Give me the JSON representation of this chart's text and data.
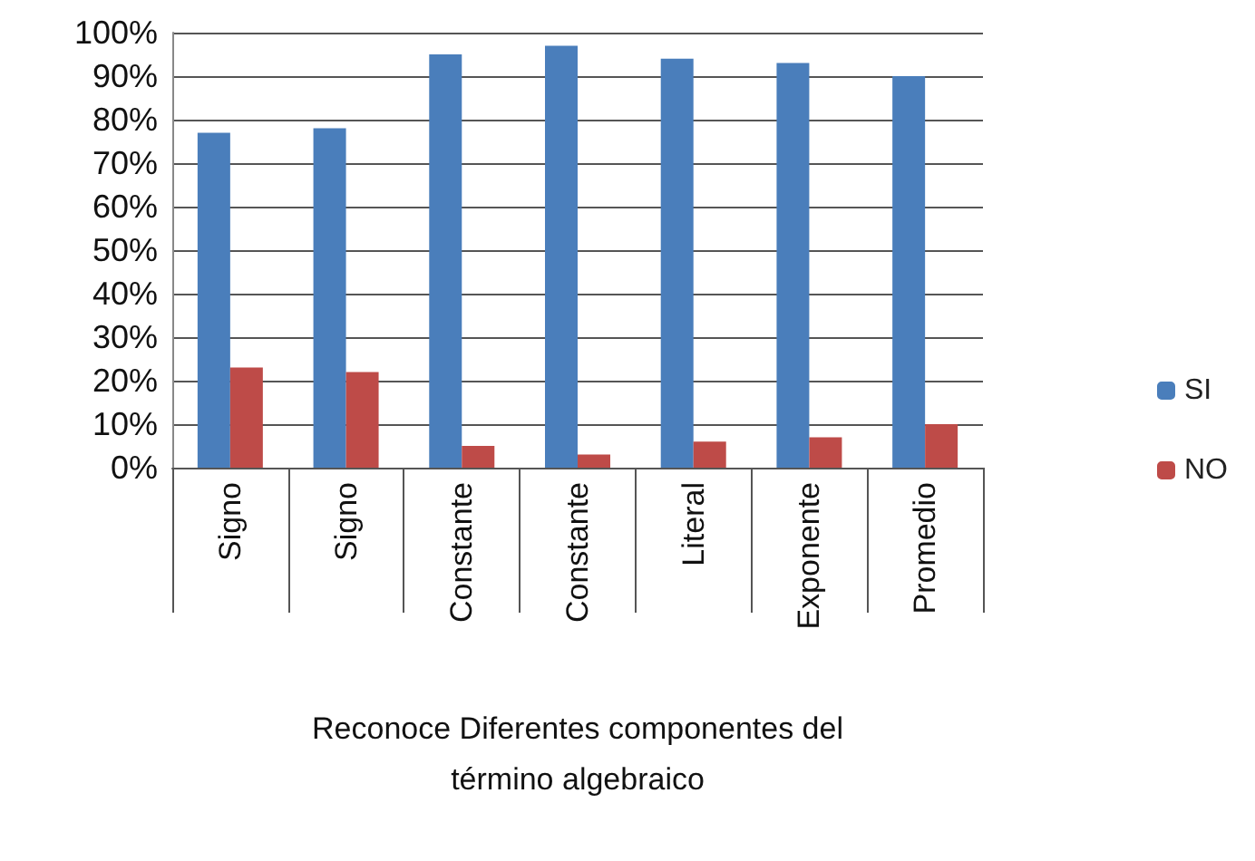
{
  "chart_data": {
    "type": "bar",
    "xlabel": "Reconoce Diferentes componentes del\ntérmino algebraico",
    "categories": [
      "Signo",
      "Signo",
      "Constante",
      "Constante",
      "Literal",
      "Exponente",
      "Promedio"
    ],
    "series": [
      {
        "name": "SI",
        "color": "#4a7ebb",
        "values": [
          77,
          78,
          95,
          97,
          94,
          93,
          90
        ]
      },
      {
        "name": "NO",
        "color": "#be4b48",
        "values": [
          23,
          22,
          5,
          3,
          6,
          7,
          10
        ]
      }
    ],
    "ylim": [
      0,
      100
    ],
    "yticks": [
      {
        "value": 0,
        "label": "0%"
      },
      {
        "value": 10,
        "label": "10%"
      },
      {
        "value": 20,
        "label": "20%"
      },
      {
        "value": 30,
        "label": "30%"
      },
      {
        "value": 40,
        "label": "40%"
      },
      {
        "value": 50,
        "label": "50%"
      },
      {
        "value": 60,
        "label": "60%"
      },
      {
        "value": 70,
        "label": "70%"
      },
      {
        "value": 80,
        "label": "80%"
      },
      {
        "value": 90,
        "label": "90%"
      },
      {
        "value": 100,
        "label": "100%"
      }
    ],
    "grid": "y",
    "legend": "right"
  }
}
